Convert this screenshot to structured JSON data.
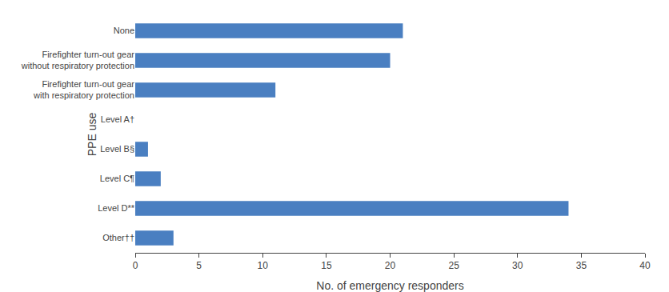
{
  "chart_data": {
    "type": "bar",
    "orientation": "horizontal",
    "categories": [
      "Other††",
      "Level D**",
      "Level C¶",
      "Level B§",
      "Level A†",
      "Firefighter turn-out gear\nwith respiratory protection",
      "Firefighter turn-out gear\nwithout respiratory protection",
      "None"
    ],
    "values": [
      3,
      34,
      2,
      1,
      0,
      11,
      20,
      21
    ],
    "color": "#4a7fc1",
    "xlabel": "No. of emergency responders",
    "ylabel": "PPE use",
    "xlim": [
      0,
      40
    ],
    "xticks": [
      0,
      5,
      10,
      15,
      20,
      25,
      30,
      35,
      40
    ],
    "grid": false
  }
}
